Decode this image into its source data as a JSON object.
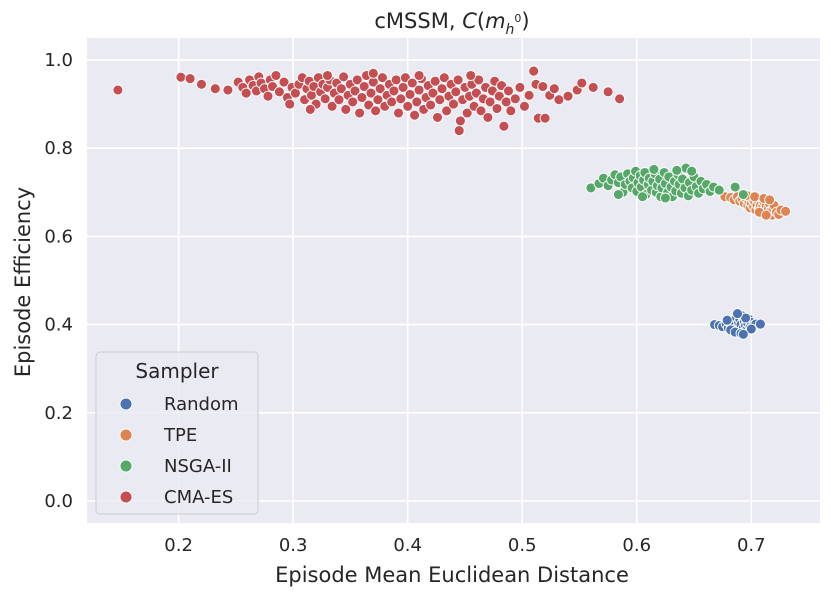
{
  "chart_data": {
    "type": "scatter",
    "title_prefix": "cMSSM, ",
    "title_func": "C",
    "title_var": "m",
    "title_sub": "h",
    "title_sup": "0",
    "xlabel": "Episode Mean Euclidean Distance",
    "ylabel": "Episode Efficiency",
    "xlim": [
      0.12,
      0.76
    ],
    "ylim": [
      -0.05,
      1.05
    ],
    "xticks": [
      0.2,
      0.3,
      0.4,
      0.5,
      0.6,
      0.7
    ],
    "yticks": [
      0.0,
      0.2,
      0.4,
      0.6,
      0.8,
      1.0
    ],
    "xtick_labels": [
      "0.2",
      "0.3",
      "0.4",
      "0.5",
      "0.6",
      "0.7"
    ],
    "ytick_labels": [
      "0.0",
      "0.2",
      "0.4",
      "0.6",
      "0.8",
      "1.0"
    ],
    "grid": true,
    "legend": {
      "title": "Sampler",
      "placement": "lower-left",
      "entries": [
        "Random",
        "TPE",
        "NSGA-II",
        "CMA-ES"
      ]
    },
    "series": [
      {
        "name": "Random",
        "color": "#4c72b0",
        "points": [
          [
            0.668,
            0.4
          ],
          [
            0.672,
            0.398
          ],
          [
            0.675,
            0.395
          ],
          [
            0.678,
            0.402
          ],
          [
            0.68,
            0.392
          ],
          [
            0.681,
            0.405
          ],
          [
            0.683,
            0.398
          ],
          [
            0.684,
            0.41
          ],
          [
            0.685,
            0.39
          ],
          [
            0.686,
            0.4
          ],
          [
            0.687,
            0.415
          ],
          [
            0.688,
            0.395
          ],
          [
            0.689,
            0.405
          ],
          [
            0.69,
            0.385
          ],
          [
            0.69,
            0.412
          ],
          [
            0.691,
            0.4
          ],
          [
            0.692,
            0.42
          ],
          [
            0.693,
            0.392
          ],
          [
            0.694,
            0.407
          ],
          [
            0.695,
            0.398
          ],
          [
            0.696,
            0.388
          ],
          [
            0.697,
            0.403
          ],
          [
            0.698,
            0.412
          ],
          [
            0.699,
            0.395
          ],
          [
            0.7,
            0.405
          ],
          [
            0.702,
            0.398
          ],
          [
            0.704,
            0.401
          ],
          [
            0.708,
            0.401
          ],
          [
            0.682,
            0.388
          ],
          [
            0.686,
            0.383
          ],
          [
            0.691,
            0.38
          ],
          [
            0.695,
            0.415
          ],
          [
            0.688,
            0.425
          ],
          [
            0.679,
            0.41
          ],
          [
            0.7,
            0.39
          ],
          [
            0.693,
            0.378
          ]
        ]
      },
      {
        "name": "TPE",
        "color": "#dd8452",
        "points": [
          [
            0.677,
            0.69
          ],
          [
            0.682,
            0.688
          ],
          [
            0.685,
            0.683
          ],
          [
            0.688,
            0.69
          ],
          [
            0.69,
            0.68
          ],
          [
            0.692,
            0.685
          ],
          [
            0.694,
            0.675
          ],
          [
            0.695,
            0.688
          ],
          [
            0.697,
            0.67
          ],
          [
            0.698,
            0.68
          ],
          [
            0.699,
            0.665
          ],
          [
            0.7,
            0.675
          ],
          [
            0.701,
            0.685
          ],
          [
            0.702,
            0.668
          ],
          [
            0.703,
            0.678
          ],
          [
            0.704,
            0.66
          ],
          [
            0.705,
            0.672
          ],
          [
            0.706,
            0.682
          ],
          [
            0.707,
            0.663
          ],
          [
            0.708,
            0.67
          ],
          [
            0.709,
            0.656
          ],
          [
            0.71,
            0.668
          ],
          [
            0.711,
            0.678
          ],
          [
            0.712,
            0.66
          ],
          [
            0.713,
            0.67
          ],
          [
            0.714,
            0.652
          ],
          [
            0.715,
            0.664
          ],
          [
            0.716,
            0.674
          ],
          [
            0.717,
            0.658
          ],
          [
            0.718,
            0.648
          ],
          [
            0.719,
            0.662
          ],
          [
            0.72,
            0.67
          ],
          [
            0.722,
            0.655
          ],
          [
            0.724,
            0.65
          ],
          [
            0.726,
            0.66
          ],
          [
            0.73,
            0.657
          ],
          [
            0.696,
            0.693
          ],
          [
            0.703,
            0.69
          ],
          [
            0.711,
            0.686
          ],
          [
            0.716,
            0.683
          ],
          [
            0.707,
            0.655
          ],
          [
            0.713,
            0.648
          ]
        ]
      },
      {
        "name": "NSGA-II",
        "color": "#55a868",
        "points": [
          [
            0.56,
            0.71
          ],
          [
            0.567,
            0.72
          ],
          [
            0.571,
            0.732
          ],
          [
            0.575,
            0.715
          ],
          [
            0.578,
            0.728
          ],
          [
            0.581,
            0.74
          ],
          [
            0.584,
            0.722
          ],
          [
            0.586,
            0.735
          ],
          [
            0.588,
            0.7
          ],
          [
            0.59,
            0.718
          ],
          [
            0.592,
            0.742
          ],
          [
            0.594,
            0.725
          ],
          [
            0.596,
            0.71
          ],
          [
            0.597,
            0.733
          ],
          [
            0.599,
            0.748
          ],
          [
            0.6,
            0.702
          ],
          [
            0.601,
            0.722
          ],
          [
            0.603,
            0.738
          ],
          [
            0.604,
            0.712
          ],
          [
            0.606,
            0.728
          ],
          [
            0.607,
            0.745
          ],
          [
            0.608,
            0.695
          ],
          [
            0.61,
            0.718
          ],
          [
            0.611,
            0.732
          ],
          [
            0.613,
            0.705
          ],
          [
            0.614,
            0.725
          ],
          [
            0.616,
            0.742
          ],
          [
            0.617,
            0.7
          ],
          [
            0.618,
            0.715
          ],
          [
            0.62,
            0.73
          ],
          [
            0.621,
            0.69
          ],
          [
            0.622,
            0.71
          ],
          [
            0.624,
            0.745
          ],
          [
            0.625,
            0.72
          ],
          [
            0.627,
            0.7
          ],
          [
            0.628,
            0.735
          ],
          [
            0.63,
            0.712
          ],
          [
            0.631,
            0.69
          ],
          [
            0.633,
            0.725
          ],
          [
            0.634,
            0.703
          ],
          [
            0.636,
            0.74
          ],
          [
            0.637,
            0.718
          ],
          [
            0.639,
            0.698
          ],
          [
            0.64,
            0.73
          ],
          [
            0.642,
            0.71
          ],
          [
            0.643,
            0.755
          ],
          [
            0.645,
            0.692
          ],
          [
            0.646,
            0.722
          ],
          [
            0.648,
            0.705
          ],
          [
            0.65,
            0.735
          ],
          [
            0.652,
            0.713
          ],
          [
            0.654,
            0.698
          ],
          [
            0.656,
            0.725
          ],
          [
            0.658,
            0.708
          ],
          [
            0.661,
            0.718
          ],
          [
            0.664,
            0.702
          ],
          [
            0.667,
            0.712
          ],
          [
            0.672,
            0.705
          ],
          [
            0.686,
            0.712
          ],
          [
            0.693,
            0.695
          ],
          [
            0.605,
            0.69
          ],
          [
            0.615,
            0.752
          ],
          [
            0.625,
            0.687
          ],
          [
            0.635,
            0.75
          ],
          [
            0.648,
            0.748
          ],
          [
            0.584,
            0.695
          ]
        ]
      },
      {
        "name": "CMA-ES",
        "color": "#c44e52",
        "points": [
          [
            0.147,
            0.932
          ],
          [
            0.202,
            0.961
          ],
          [
            0.21,
            0.958
          ],
          [
            0.22,
            0.945
          ],
          [
            0.232,
            0.935
          ],
          [
            0.243,
            0.932
          ],
          [
            0.252,
            0.95
          ],
          [
            0.256,
            0.938
          ],
          [
            0.259,
            0.925
          ],
          [
            0.262,
            0.955
          ],
          [
            0.265,
            0.942
          ],
          [
            0.268,
            0.93
          ],
          [
            0.27,
            0.962
          ],
          [
            0.272,
            0.948
          ],
          [
            0.275,
            0.935
          ],
          [
            0.278,
            0.918
          ],
          [
            0.28,
            0.955
          ],
          [
            0.282,
            0.94
          ],
          [
            0.285,
            0.965
          ],
          [
            0.288,
            0.928
          ],
          [
            0.292,
            0.95
          ],
          [
            0.295,
            0.915
          ],
          [
            0.297,
            0.9
          ],
          [
            0.299,
            0.938
          ],
          [
            0.302,
            0.925
          ],
          [
            0.305,
            0.945
          ],
          [
            0.308,
            0.96
          ],
          [
            0.31,
            0.91
          ],
          [
            0.312,
            0.935
          ],
          [
            0.314,
            0.952
          ],
          [
            0.316,
            0.92
          ],
          [
            0.318,
            0.94
          ],
          [
            0.32,
            0.9
          ],
          [
            0.322,
            0.96
          ],
          [
            0.324,
            0.928
          ],
          [
            0.326,
            0.945
          ],
          [
            0.328,
            0.912
          ],
          [
            0.33,
            0.938
          ],
          [
            0.332,
            0.955
          ],
          [
            0.334,
            0.895
          ],
          [
            0.336,
            0.925
          ],
          [
            0.338,
            0.948
          ],
          [
            0.34,
            0.91
          ],
          [
            0.342,
            0.935
          ],
          [
            0.344,
            0.962
          ],
          [
            0.346,
            0.888
          ],
          [
            0.348,
            0.92
          ],
          [
            0.35,
            0.945
          ],
          [
            0.352,
            0.905
          ],
          [
            0.354,
            0.93
          ],
          [
            0.356,
            0.955
          ],
          [
            0.358,
            0.88
          ],
          [
            0.36,
            0.915
          ],
          [
            0.362,
            0.94
          ],
          [
            0.364,
            0.965
          ],
          [
            0.366,
            0.898
          ],
          [
            0.368,
            0.925
          ],
          [
            0.37,
            0.95
          ],
          [
            0.372,
            0.885
          ],
          [
            0.374,
            0.91
          ],
          [
            0.376,
            0.935
          ],
          [
            0.378,
            0.96
          ],
          [
            0.38,
            0.895
          ],
          [
            0.382,
            0.92
          ],
          [
            0.384,
            0.945
          ],
          [
            0.386,
            0.905
          ],
          [
            0.388,
            0.93
          ],
          [
            0.39,
            0.955
          ],
          [
            0.392,
            0.88
          ],
          [
            0.394,
            0.912
          ],
          [
            0.396,
            0.938
          ],
          [
            0.398,
            0.96
          ],
          [
            0.4,
            0.895
          ],
          [
            0.402,
            0.922
          ],
          [
            0.404,
            0.948
          ],
          [
            0.406,
            0.875
          ],
          [
            0.408,
            0.905
          ],
          [
            0.41,
            0.932
          ],
          [
            0.412,
            0.958
          ],
          [
            0.414,
            0.888
          ],
          [
            0.416,
            0.915
          ],
          [
            0.418,
            0.942
          ],
          [
            0.42,
            0.898
          ],
          [
            0.422,
            0.925
          ],
          [
            0.424,
            0.952
          ],
          [
            0.426,
            0.87
          ],
          [
            0.428,
            0.91
          ],
          [
            0.43,
            0.935
          ],
          [
            0.432,
            0.96
          ],
          [
            0.434,
            0.885
          ],
          [
            0.436,
            0.918
          ],
          [
            0.438,
            0.945
          ],
          [
            0.44,
            0.9
          ],
          [
            0.442,
            0.928
          ],
          [
            0.444,
            0.955
          ],
          [
            0.446,
            0.862
          ],
          [
            0.448,
            0.91
          ],
          [
            0.45,
            0.938
          ],
          [
            0.452,
            0.88
          ],
          [
            0.454,
            0.918
          ],
          [
            0.456,
            0.945
          ],
          [
            0.458,
            0.895
          ],
          [
            0.46,
            0.925
          ],
          [
            0.462,
            0.955
          ],
          [
            0.464,
            0.885
          ],
          [
            0.466,
            0.912
          ],
          [
            0.468,
            0.938
          ],
          [
            0.47,
            0.87
          ],
          [
            0.472,
            0.905
          ],
          [
            0.474,
            0.93
          ],
          [
            0.476,
            0.952
          ],
          [
            0.478,
            0.89
          ],
          [
            0.48,
            0.918
          ],
          [
            0.482,
            0.942
          ],
          [
            0.484,
            0.85
          ],
          [
            0.486,
            0.905
          ],
          [
            0.488,
            0.93
          ],
          [
            0.49,
            0.885
          ],
          [
            0.494,
            0.912
          ],
          [
            0.498,
            0.938
          ],
          [
            0.502,
            0.895
          ],
          [
            0.506,
            0.92
          ],
          [
            0.51,
            0.975
          ],
          [
            0.512,
            0.945
          ],
          [
            0.514,
            0.868
          ],
          [
            0.518,
            0.94
          ],
          [
            0.52,
            0.868
          ],
          [
            0.524,
            0.92
          ],
          [
            0.528,
            0.935
          ],
          [
            0.532,
            0.91
          ],
          [
            0.54,
            0.918
          ],
          [
            0.548,
            0.932
          ],
          [
            0.552,
            0.948
          ],
          [
            0.562,
            0.938
          ],
          [
            0.575,
            0.928
          ],
          [
            0.585,
            0.912
          ],
          [
            0.445,
            0.84
          ],
          [
            0.41,
            0.965
          ],
          [
            0.37,
            0.97
          ],
          [
            0.33,
            0.965
          ],
          [
            0.455,
            0.965
          ],
          [
            0.315,
            0.888
          ]
        ]
      }
    ]
  }
}
